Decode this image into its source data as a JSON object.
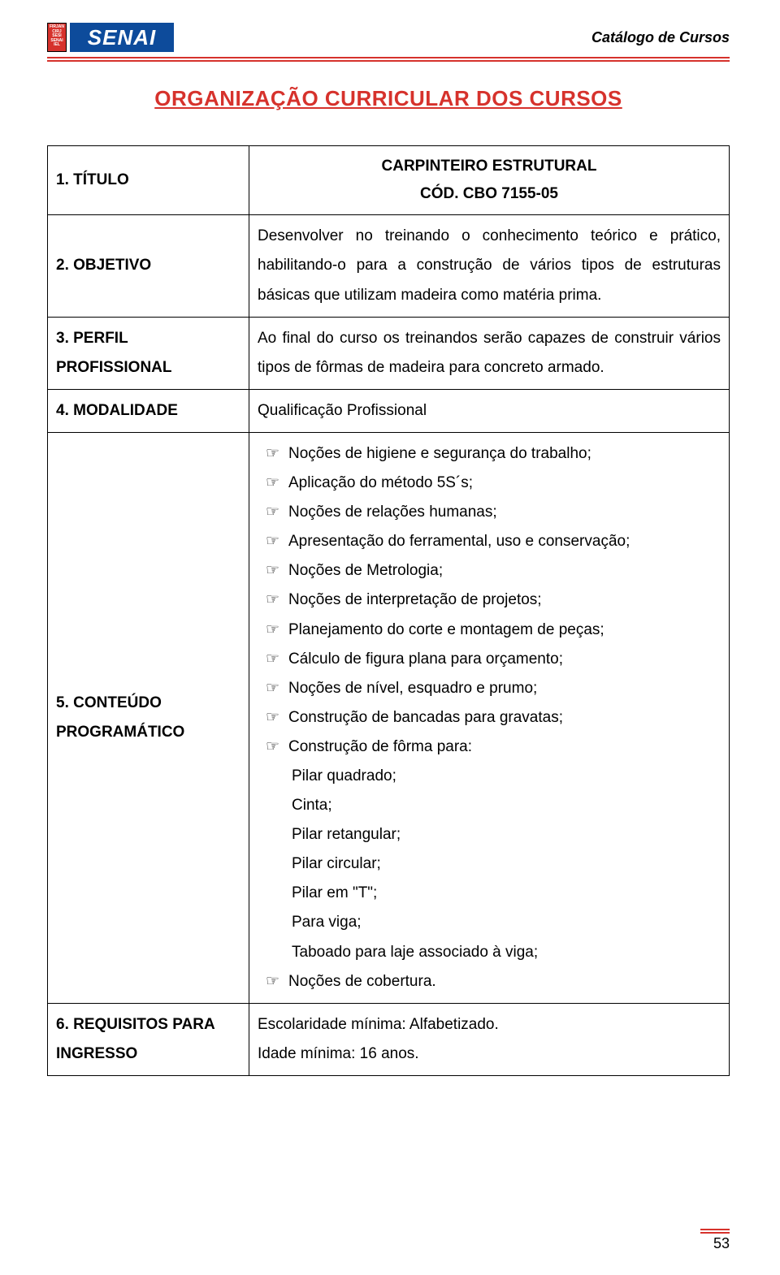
{
  "header": {
    "logo_tag_lines": "FIRJAN CIRJ SESI SENAI IEL",
    "logo_word": "SENAI",
    "right_text": "Catálogo de Cursos"
  },
  "title": "ORGANIZAÇÃO CURRICULAR DOS CURSOS",
  "rows": {
    "r1": {
      "label": "1. TÍTULO",
      "line1": "CARPINTEIRO ESTRUTURAL",
      "line2": "CÓD. CBO 7155-05"
    },
    "r2": {
      "label": "2. OBJETIVO",
      "text": "Desenvolver no treinando o conhecimento teórico e prático, habilitando-o para a construção de vários tipos de estruturas básicas que utilizam madeira como matéria prima."
    },
    "r3": {
      "label": "3. PERFIL PROFISSIONAL",
      "text": "Ao final do curso os treinandos serão capazes de construir vários tipos de fôrmas de madeira para concreto armado."
    },
    "r4": {
      "label": "4. MODALIDADE",
      "text": "Qualificação Profissional"
    },
    "r5": {
      "label": "5. CONTEÚDO PROGRAMÁTICO",
      "items": [
        "Noções de higiene e segurança do trabalho;",
        "Aplicação do método 5S´s;",
        "Noções de relações humanas;",
        "Apresentação do ferramental, uso e conservação;",
        "Noções de Metrologia;",
        "Noções de interpretação de projetos;",
        "Planejamento do corte e montagem de peças;",
        "Cálculo de figura plana para orçamento;",
        "Noções de nível, esquadro e prumo;",
        "Construção de bancadas para gravatas;",
        "Construção de fôrma para:"
      ],
      "subitems": [
        "Pilar quadrado;",
        "Cinta;",
        "Pilar retangular;",
        "Pilar circular;",
        "Pilar em \"T\";",
        "Para viga;",
        "Taboado para laje associado à viga;"
      ],
      "last_item": "Noções de cobertura."
    },
    "r6": {
      "label": "6. REQUISITOS PARA INGRESSO",
      "line1": "Escolaridade mínima: Alfabetizado.",
      "line2": "Idade mínima: 16 anos."
    }
  },
  "bullet_symbol": "☞",
  "page_number": "53"
}
